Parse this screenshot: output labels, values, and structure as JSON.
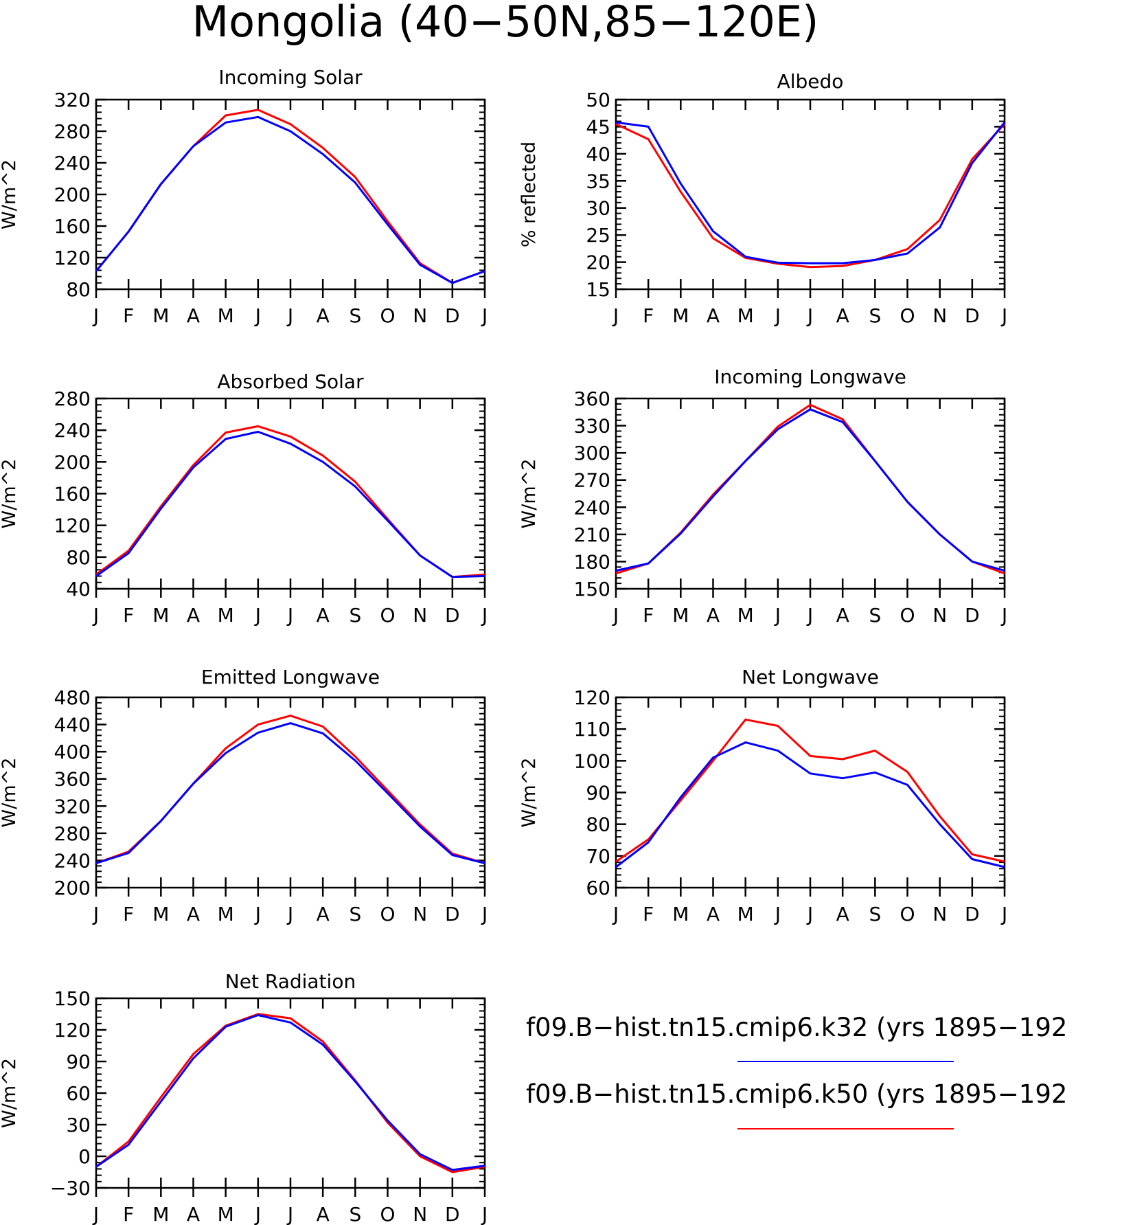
{
  "figure_title": "Mongolia (40−50N,85−120E)",
  "colors": {
    "k32": "#0000ff",
    "k50": "#ff0000",
    "axis": "#000000"
  },
  "legend": [
    {
      "label": "f09.B−hist.tn15.cmip6.k32 (yrs 1895−192",
      "color": "#0000ff"
    },
    {
      "label": "f09.B−hist.tn15.cmip6.k50 (yrs 1895−192",
      "color": "#ff0000"
    }
  ],
  "chart_data": [
    {
      "type": "line",
      "title": "Incoming Solar",
      "ylabel": "W/m^2",
      "x": [
        "J",
        "F",
        "M",
        "A",
        "M",
        "J",
        "J",
        "A",
        "S",
        "O",
        "N",
        "D",
        "J"
      ],
      "ylim": [
        80,
        320
      ],
      "yticks": [
        80,
        120,
        160,
        200,
        240,
        280,
        320
      ],
      "series": [
        {
          "name": "k50",
          "values": [
            103,
            153,
            213,
            261,
            300,
            307,
            289,
            259,
            222,
            166,
            113,
            88,
            103
          ]
        },
        {
          "name": "k32",
          "values": [
            103,
            153,
            213,
            261,
            291,
            298,
            280,
            251,
            215,
            162,
            111,
            88,
            103
          ]
        }
      ]
    },
    {
      "type": "line",
      "title": "Albedo",
      "ylabel": "% reflected",
      "x": [
        "J",
        "F",
        "M",
        "A",
        "M",
        "J",
        "J",
        "A",
        "S",
        "O",
        "N",
        "D",
        "J"
      ],
      "ylim": [
        15,
        50
      ],
      "yticks": [
        15,
        20,
        25,
        30,
        35,
        40,
        45,
        50
      ],
      "series": [
        {
          "name": "k50",
          "values": [
            45.5,
            42.7,
            33.0,
            24.4,
            20.8,
            19.7,
            19.1,
            19.3,
            20.4,
            22.4,
            27.8,
            39.0,
            45.5
          ]
        },
        {
          "name": "k32",
          "values": [
            45.8,
            45.0,
            34.5,
            25.7,
            21.0,
            19.9,
            19.8,
            19.8,
            20.4,
            21.6,
            26.4,
            38.3,
            45.8
          ]
        }
      ]
    },
    {
      "type": "line",
      "title": "Absorbed Solar",
      "ylabel": "W/m^2",
      "x": [
        "J",
        "F",
        "M",
        "A",
        "M",
        "J",
        "J",
        "A",
        "S",
        "O",
        "N",
        "D",
        "J"
      ],
      "ylim": [
        40,
        280
      ],
      "yticks": [
        40,
        80,
        120,
        160,
        200,
        240,
        280
      ],
      "series": [
        {
          "name": "k50",
          "values": [
            58,
            88,
            144,
            196,
            237,
            245,
            232,
            208,
            175,
            128,
            82,
            55,
            58
          ]
        },
        {
          "name": "k32",
          "values": [
            56,
            85,
            141,
            193,
            229,
            238,
            223,
            200,
            169,
            126,
            82,
            55,
            56
          ]
        }
      ]
    },
    {
      "type": "line",
      "title": "Incoming Longwave",
      "ylabel": "W/m^2",
      "x": [
        "J",
        "F",
        "M",
        "A",
        "M",
        "J",
        "J",
        "A",
        "S",
        "O",
        "N",
        "D",
        "J"
      ],
      "ylim": [
        150,
        360
      ],
      "yticks": [
        150,
        180,
        210,
        240,
        270,
        300,
        330,
        360
      ],
      "series": [
        {
          "name": "k50",
          "values": [
            167,
            178,
            212,
            254,
            291,
            329,
            353,
            337,
            291,
            246,
            210,
            180,
            167
          ]
        },
        {
          "name": "k32",
          "values": [
            170,
            178,
            211,
            252,
            291,
            326,
            348,
            334,
            291,
            246,
            210,
            180,
            170
          ]
        }
      ]
    },
    {
      "type": "line",
      "title": "Emitted Longwave",
      "ylabel": "W/m^2",
      "x": [
        "J",
        "F",
        "M",
        "A",
        "M",
        "J",
        "J",
        "A",
        "S",
        "O",
        "N",
        "D",
        "J"
      ],
      "ylim": [
        200,
        480
      ],
      "yticks": [
        200,
        240,
        280,
        320,
        360,
        400,
        440,
        480
      ],
      "series": [
        {
          "name": "k50",
          "values": [
            236,
            253,
            298,
            353,
            405,
            440,
            453,
            437,
            393,
            343,
            293,
            250,
            236
          ]
        },
        {
          "name": "k32",
          "values": [
            236,
            251,
            298,
            353,
            398,
            428,
            442,
            427,
            387,
            339,
            290,
            248,
            236
          ]
        }
      ]
    },
    {
      "type": "line",
      "title": "Net Longwave",
      "ylabel": "W/m^2",
      "x": [
        "J",
        "F",
        "M",
        "A",
        "M",
        "J",
        "J",
        "A",
        "S",
        "O",
        "N",
        "D",
        "J"
      ],
      "ylim": [
        60,
        120
      ],
      "yticks": [
        60,
        70,
        80,
        90,
        100,
        110,
        120
      ],
      "series": [
        {
          "name": "k50",
          "values": [
            68.2,
            75.2,
            87.5,
            100.0,
            113.0,
            111.0,
            101.5,
            100.5,
            103.2,
            96.5,
            82.5,
            70.5,
            68.2
          ]
        },
        {
          "name": "k32",
          "values": [
            66.5,
            74.3,
            88.5,
            101.0,
            105.8,
            103.2,
            96.0,
            94.5,
            96.3,
            92.4,
            80.0,
            69.0,
            66.5
          ]
        }
      ]
    },
    {
      "type": "line",
      "title": "Net Radiation",
      "ylabel": "W/m^2",
      "x": [
        "J",
        "F",
        "M",
        "A",
        "M",
        "J",
        "J",
        "A",
        "S",
        "O",
        "N",
        "D",
        "J"
      ],
      "ylim": [
        -30,
        150
      ],
      "yticks": [
        -30,
        0,
        30,
        60,
        90,
        120,
        150
      ],
      "series": [
        {
          "name": "k50",
          "values": [
            -10,
            14,
            56,
            97,
            124,
            135,
            131,
            109,
            72,
            32,
            0,
            -15,
            -10
          ]
        },
        {
          "name": "k32",
          "values": [
            -10,
            11,
            52,
            93,
            123,
            134,
            127,
            106,
            71,
            34,
            2,
            -13,
            -9
          ]
        }
      ]
    }
  ]
}
